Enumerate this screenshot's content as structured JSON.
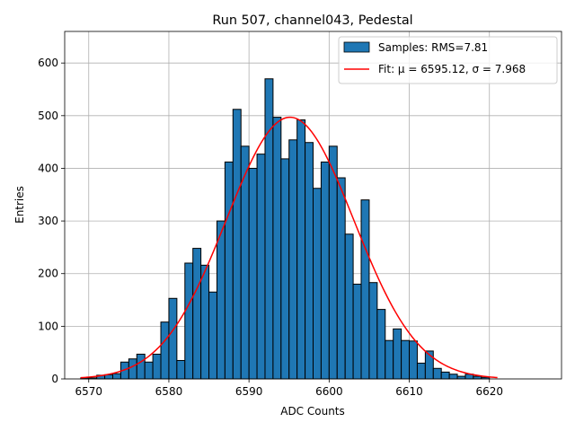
{
  "chart_data": {
    "type": "bar",
    "title": "Run 507, channel043, Pedestal",
    "xlabel": "ADC Counts",
    "ylabel": "Entries",
    "xlim": [
      6567,
      6629
    ],
    "ylim": [
      0,
      660
    ],
    "xticks": [
      6570,
      6580,
      6590,
      6600,
      6610,
      6620
    ],
    "yticks": [
      0,
      100,
      200,
      300,
      400,
      500,
      600
    ],
    "grid": true,
    "legend_position": "top-right",
    "bin_width": 1,
    "bin_start": 6569,
    "bin_counts": [
      2,
      2,
      7,
      8,
      10,
      32,
      38,
      47,
      32,
      47,
      108,
      153,
      35,
      220,
      248,
      216,
      165,
      300,
      412,
      512,
      442,
      400,
      427,
      570,
      497,
      418,
      454,
      492,
      449,
      362,
      412,
      442,
      382,
      275,
      180,
      340,
      183,
      132,
      73,
      95,
      73,
      72,
      30,
      53,
      20,
      13,
      9,
      5,
      9,
      5,
      3,
      0
    ],
    "series": [
      {
        "name": "Samples: RMS=7.81",
        "type": "histogram",
        "color": "#1f77b4"
      },
      {
        "name": "Fit: μ = 6595.12, σ = 7.968",
        "type": "line",
        "color": "#ff0000",
        "mu": 6595.12,
        "sigma": 7.968,
        "amplitude": 497,
        "x_range": [
          6569,
          6621
        ]
      }
    ]
  }
}
